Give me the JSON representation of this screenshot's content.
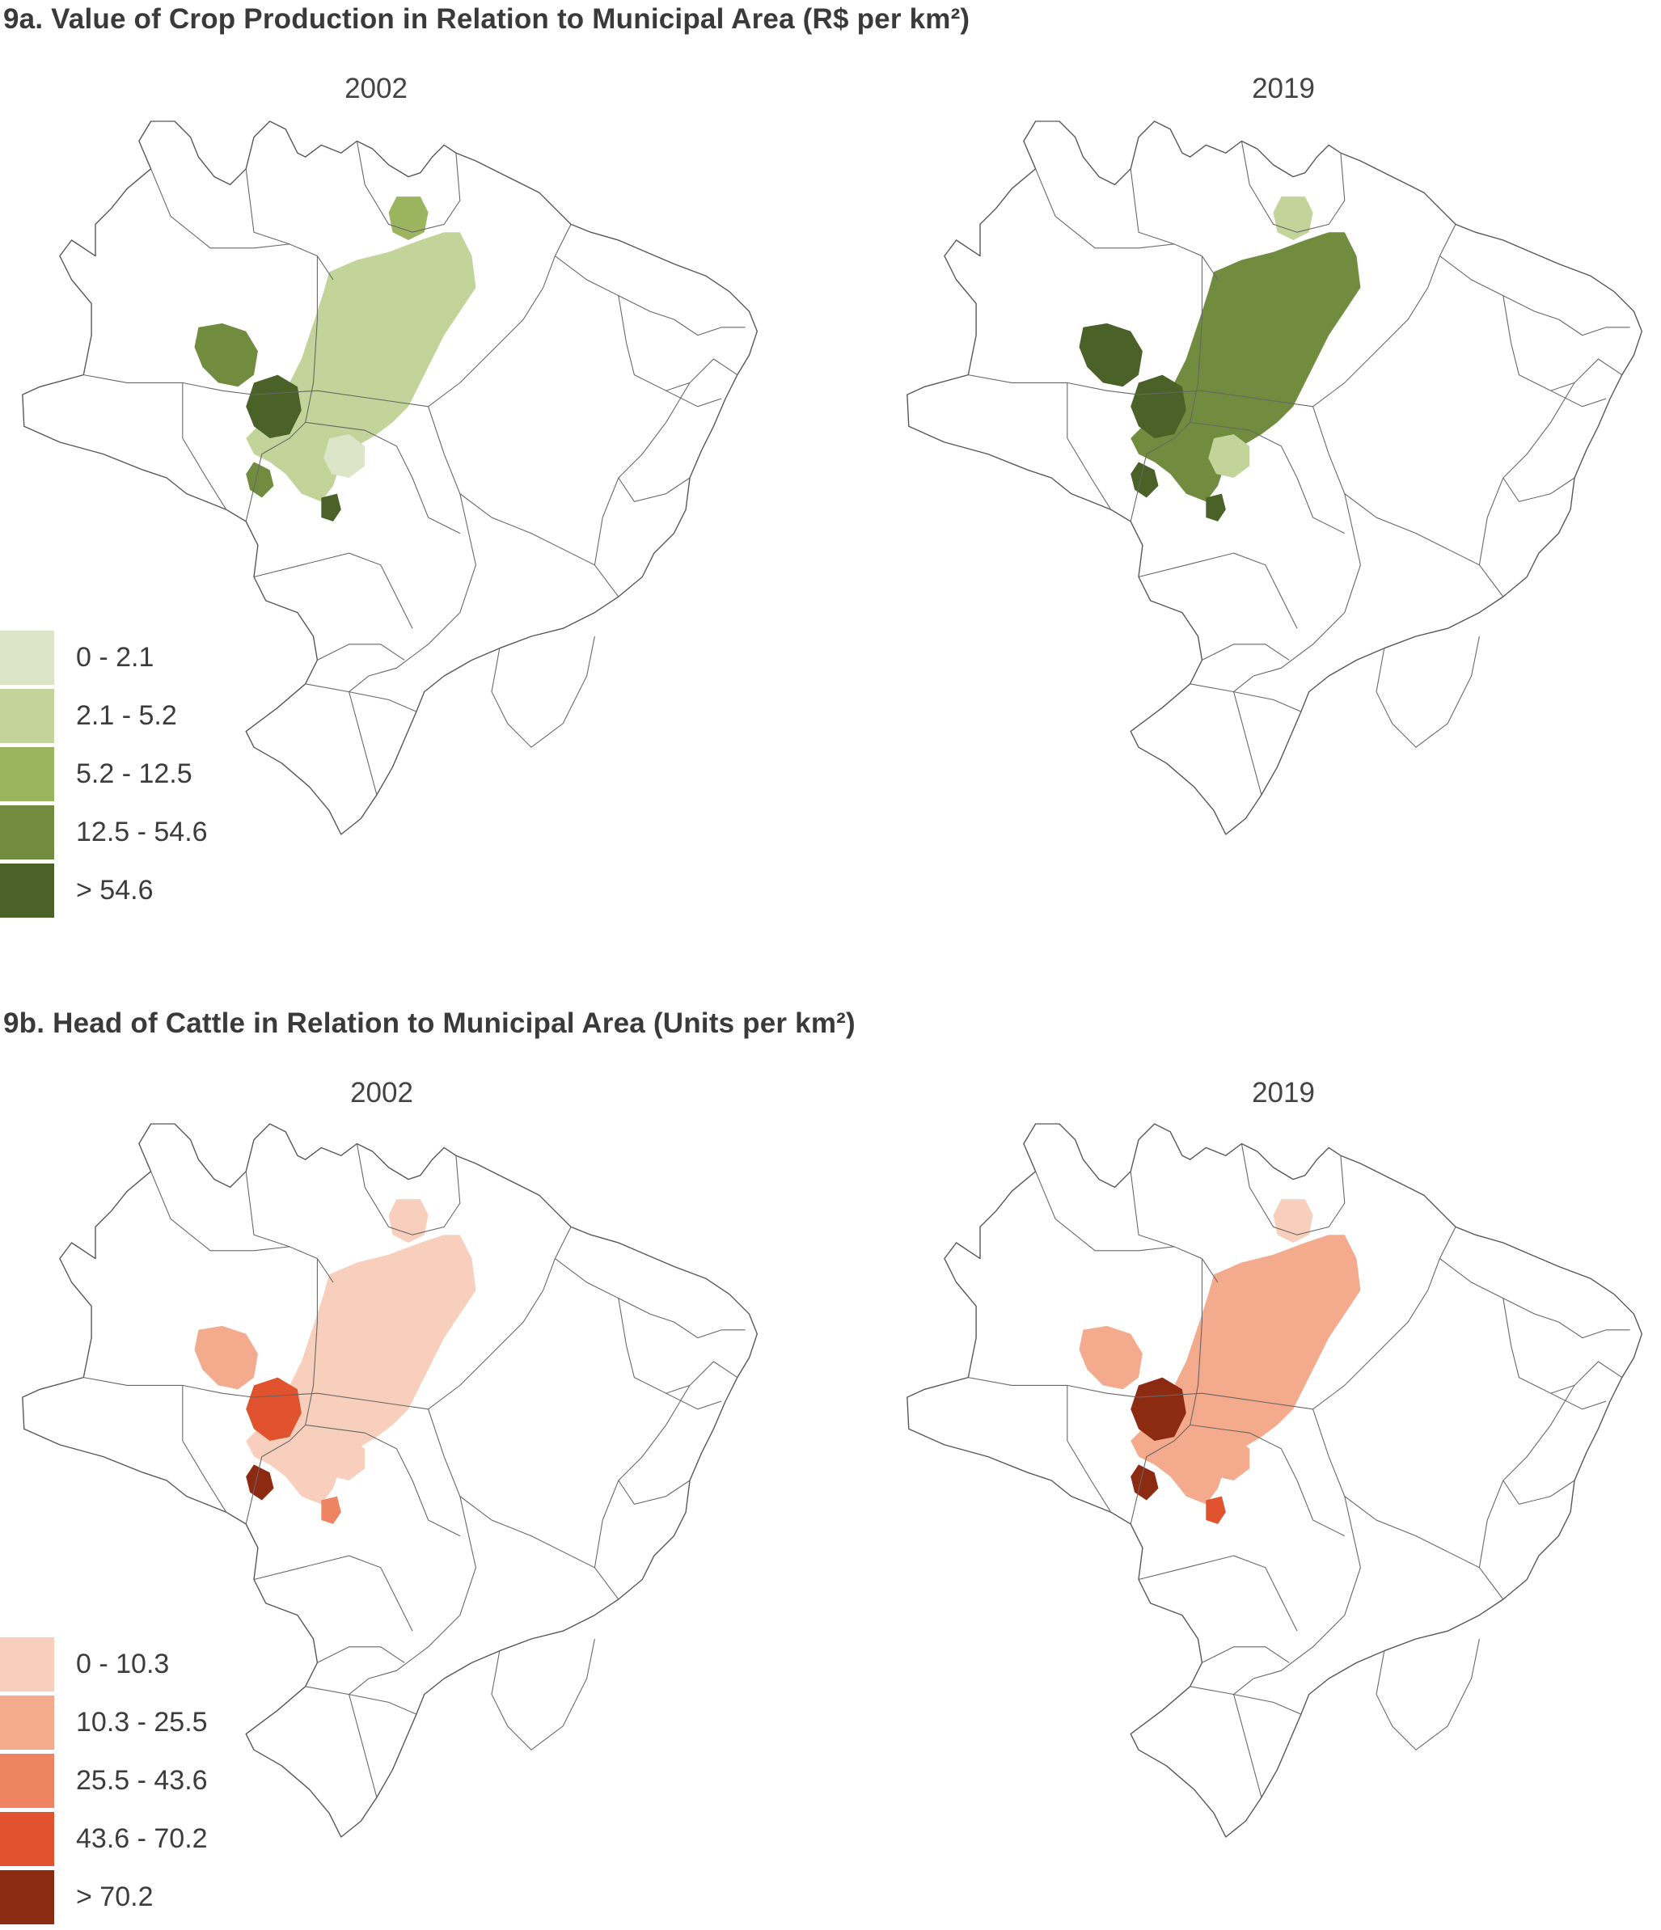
{
  "panel_a": {
    "title": "9a. Value of Crop Production in Relation to Municipal Area (R$ per km²)",
    "year_left": "2002",
    "year_right": "2019",
    "legend": [
      {
        "label": "0 - 2.1",
        "color": "#dde5c9"
      },
      {
        "label": "2.1 - 5.2",
        "color": "#c3d49a"
      },
      {
        "label": "5.2 - 12.5",
        "color": "#9bb55f"
      },
      {
        "label": "12.5 - 54.6",
        "color": "#728c3f"
      },
      {
        "label": "> 54.6",
        "color": "#4a6128"
      }
    ]
  },
  "panel_b": {
    "title": "9b. Head of Cattle in Relation to Municipal Area (Units per km²)",
    "year_left": "2002",
    "year_right": "2019",
    "legend": [
      {
        "label": "0 - 10.3",
        "color": "#f8cfbd"
      },
      {
        "label": "10.3 - 25.5",
        "color": "#f4aa8c"
      },
      {
        "label": "25.5 - 43.6",
        "color": "#ee8461"
      },
      {
        "label": "43.6 - 70.2",
        "color": "#e0532e"
      },
      {
        "label": "> 70.2",
        "color": "#8c2a12"
      }
    ]
  }
}
